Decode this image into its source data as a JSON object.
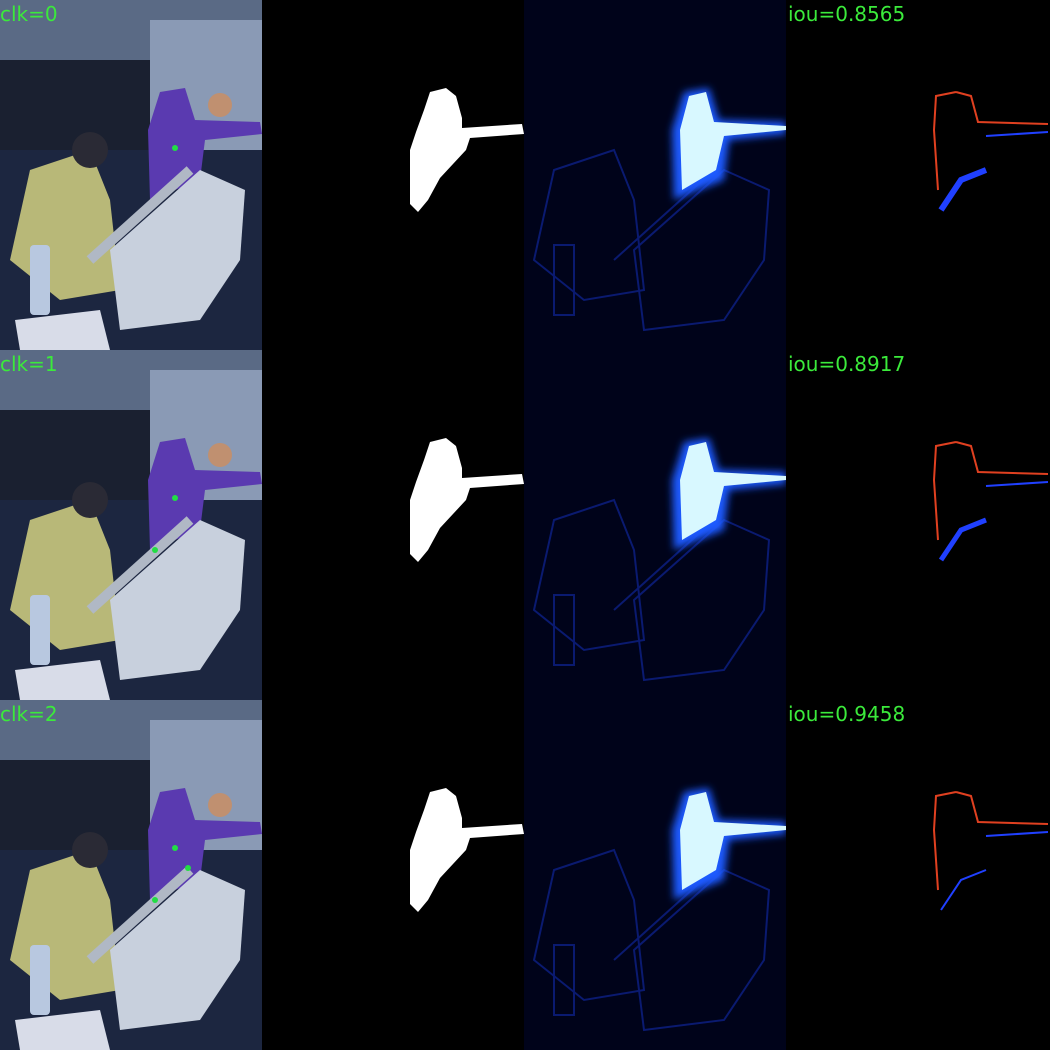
{
  "rows": [
    {
      "click_label": "clk=0",
      "iou_label": "iou=0.8565",
      "clicks": [
        [
          175,
          148
        ]
      ]
    },
    {
      "click_label": "clk=1",
      "iou_label": "iou=0.8917",
      "clicks": [
        [
          175,
          148
        ],
        [
          155,
          200
        ]
      ]
    },
    {
      "click_label": "clk=2",
      "iou_label": "iou=0.9458",
      "clicks": [
        [
          175,
          148
        ],
        [
          155,
          200
        ],
        [
          188,
          168
        ]
      ]
    }
  ],
  "colors": {
    "label_green": "#3bea3b",
    "click_point": "#22dd44",
    "error_red": "#e04020",
    "error_blue": "#2040ff"
  }
}
